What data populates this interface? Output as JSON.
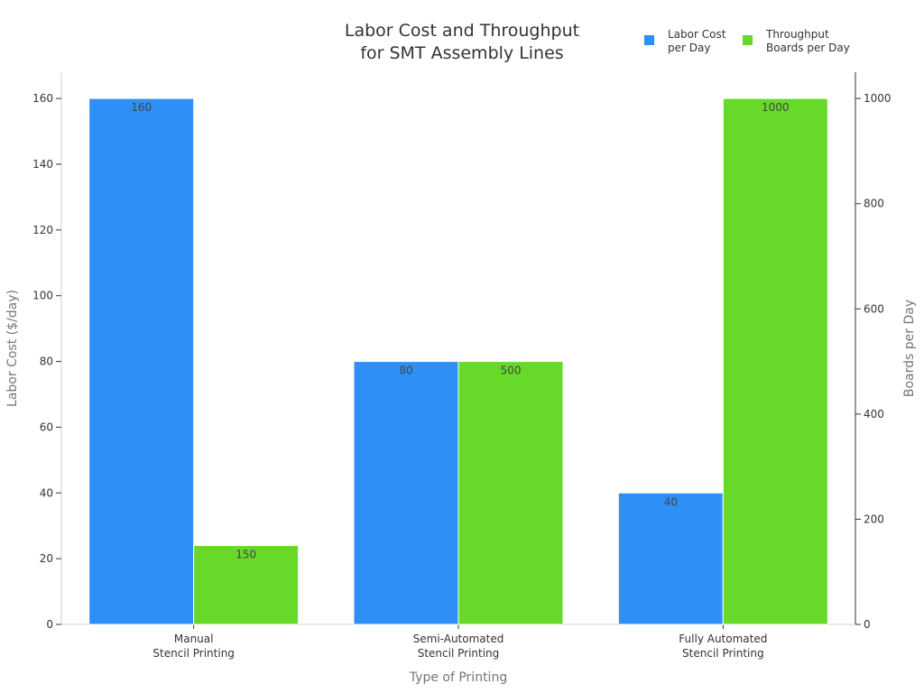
{
  "chart_data": {
    "type": "bar",
    "title": [
      "Labor Cost and Throughput",
      "for SMT Assembly Lines"
    ],
    "xlabel": "Type of Printing",
    "ylabel": "Labor Cost ($/day)",
    "y2label": "Boards per Day",
    "categories": [
      [
        "Manual",
        "Stencil Printing"
      ],
      [
        "Semi-Automated",
        "Stencil Printing"
      ],
      [
        "Fully Automated",
        "Stencil Printing"
      ]
    ],
    "series": [
      {
        "name": [
          "Labor Cost",
          "per Day"
        ],
        "axis": "left",
        "color": "#2e90f6",
        "values": [
          160,
          80,
          40
        ]
      },
      {
        "name": [
          "Throughput",
          "Boards per Day"
        ],
        "axis": "right",
        "color": "#66d929",
        "values": [
          150,
          500,
          1000
        ]
      }
    ],
    "ylim": [
      0,
      168
    ],
    "y2lim": [
      0,
      1050
    ],
    "yticks": [
      0,
      20,
      40,
      60,
      80,
      100,
      120,
      140,
      160
    ],
    "y2ticks": [
      0,
      200,
      400,
      600,
      800,
      1000
    ],
    "grid": false,
    "legend_position": "top-right"
  }
}
